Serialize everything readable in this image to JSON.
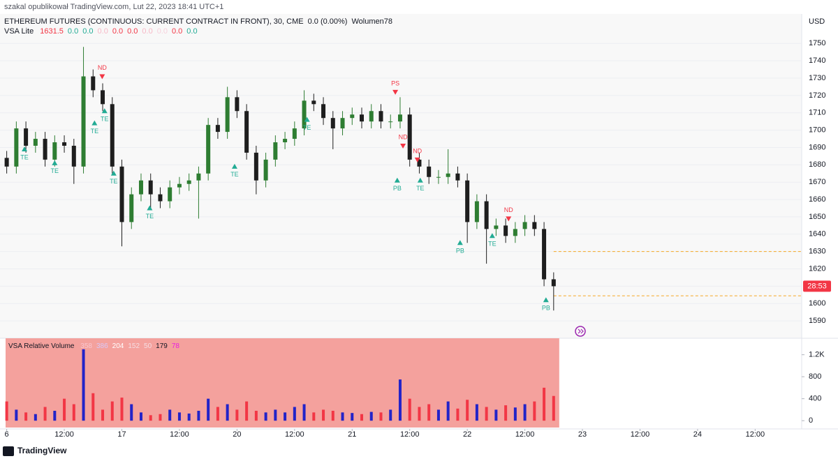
{
  "header": {
    "byline": "szakal opublikował TradingView.com, Lut 22, 2023 18:41 UTC+1",
    "symbol": "ETHEREUM FUTURES (CONTINUOUS: CURRENT CONTRACT IN FRONT), 30, CME",
    "change": "0.0 (0.00%)",
    "volume": "Wolumen78",
    "currency": "USD",
    "countdown": "28:53",
    "logo": "TradingView"
  },
  "legend": {
    "main_name": "VSA Lite",
    "main_values": [
      {
        "text": "1631.5",
        "color": "#f23645"
      },
      {
        "text": "0.0",
        "color": "#22ab94"
      },
      {
        "text": "0.0",
        "color": "#22ab94"
      },
      {
        "text": "0.0",
        "color": "#f7b8c6"
      },
      {
        "text": "0.0",
        "color": "#f23645"
      },
      {
        "text": "0.0",
        "color": "#f23645"
      },
      {
        "text": "0.0",
        "color": "#f7b8c6"
      },
      {
        "text": "0.0",
        "color": "#f7d0dc"
      },
      {
        "text": "0.0",
        "color": "#f23645"
      },
      {
        "text": "0.0",
        "color": "#22ab94"
      }
    ],
    "volume_name": "VSA Relative Volume",
    "volume_values": [
      {
        "text": "358",
        "color": "#f9c6cf"
      },
      {
        "text": "386",
        "color": "#d8c8f8"
      },
      {
        "text": "204",
        "color": "#ffffff"
      },
      {
        "text": "152",
        "color": "#f5dde3"
      },
      {
        "text": "50",
        "color": "#f5dde3"
      },
      {
        "text": "179",
        "color": "#131722"
      },
      {
        "text": "78",
        "color": "#e91ee0"
      }
    ]
  },
  "chart_data": [
    {
      "type": "candlestick",
      "x": [
        0,
        2,
        4,
        6,
        8,
        10,
        12,
        14,
        16,
        18,
        20,
        22,
        24,
        26,
        28,
        30,
        32,
        34,
        36,
        38,
        40,
        42,
        44,
        46,
        48,
        50,
        52,
        54,
        56,
        58,
        60,
        62,
        64,
        66,
        68,
        70,
        72,
        74,
        76,
        78,
        80,
        82,
        84,
        86,
        88,
        90,
        92,
        94,
        96,
        98,
        100,
        102,
        104,
        106,
        108,
        110,
        112,
        114
      ],
      "open": [
        1684,
        1679,
        1701,
        1691,
        1695,
        1683,
        1693,
        1691,
        1679,
        1731,
        1723,
        1715,
        1679,
        1647,
        1663,
        1671,
        1663,
        1659,
        1667,
        1669,
        1671,
        1675,
        1703,
        1699,
        1719,
        1711,
        1687,
        1671,
        1683,
        1693,
        1695,
        1701,
        1717,
        1715,
        1707,
        1701,
        1707,
        1709,
        1705,
        1711,
        1705,
        1705,
        1709,
        1683,
        1679,
        1673,
        1673,
        1675,
        1671,
        1647,
        1659,
        1643,
        1645,
        1639,
        1643,
        1647,
        1643,
        1614
      ],
      "high": [
        1688,
        1705,
        1705,
        1699,
        1699,
        1697,
        1697,
        1695,
        1748,
        1735,
        1727,
        1719,
        1683,
        1667,
        1675,
        1675,
        1667,
        1671,
        1673,
        1675,
        1679,
        1707,
        1707,
        1725,
        1723,
        1715,
        1691,
        1687,
        1697,
        1699,
        1705,
        1723,
        1721,
        1719,
        1711,
        1711,
        1713,
        1713,
        1715,
        1715,
        1709,
        1719,
        1713,
        1687,
        1683,
        1677,
        1689,
        1679,
        1675,
        1663,
        1663,
        1649,
        1649,
        1647,
        1651,
        1651,
        1647,
        1618
      ],
      "low": [
        1675,
        1675,
        1687,
        1687,
        1679,
        1679,
        1687,
        1669,
        1675,
        1719,
        1711,
        1675,
        1633,
        1643,
        1659,
        1655,
        1655,
        1655,
        1663,
        1665,
        1649,
        1671,
        1695,
        1695,
        1707,
        1683,
        1663,
        1667,
        1679,
        1689,
        1691,
        1697,
        1711,
        1703,
        1689,
        1697,
        1703,
        1701,
        1701,
        1701,
        1701,
        1701,
        1679,
        1675,
        1669,
        1669,
        1669,
        1667,
        1635,
        1643,
        1623,
        1639,
        1635,
        1635,
        1639,
        1639,
        1610,
        1596
      ],
      "close": [
        1679,
        1701,
        1691,
        1695,
        1683,
        1693,
        1691,
        1679,
        1731,
        1723,
        1715,
        1679,
        1647,
        1663,
        1671,
        1663,
        1659,
        1667,
        1669,
        1671,
        1675,
        1703,
        1699,
        1719,
        1711,
        1687,
        1671,
        1683,
        1693,
        1695,
        1701,
        1717,
        1715,
        1707,
        1701,
        1707,
        1709,
        1705,
        1711,
        1705,
        1705,
        1709,
        1683,
        1679,
        1673,
        1673,
        1675,
        1671,
        1647,
        1659,
        1643,
        1645,
        1639,
        1643,
        1647,
        1643,
        1614,
        1610
      ],
      "colors": {
        "up": "#2e7d32",
        "down": "#1e1e1e"
      },
      "xlim": [
        -1.4,
        165.7
      ],
      "xticks": [
        {
          "value": 0,
          "label": "6"
        },
        {
          "value": 12,
          "label": "12:00"
        },
        {
          "value": 24,
          "label": "17"
        },
        {
          "value": 36,
          "label": "12:00"
        },
        {
          "value": 48,
          "label": "20"
        },
        {
          "value": 60,
          "label": "12:00"
        },
        {
          "value": 72,
          "label": "21"
        },
        {
          "value": 84,
          "label": "12:00"
        },
        {
          "value": 96,
          "label": "22"
        },
        {
          "value": 108,
          "label": "12:00"
        },
        {
          "value": 120,
          "label": "23"
        },
        {
          "value": 132,
          "label": "12:00"
        },
        {
          "value": 144,
          "label": "24"
        },
        {
          "value": 156,
          "label": "12:00"
        }
      ],
      "ylim": [
        1580,
        1767
      ],
      "yticks": [
        1590,
        1600,
        1610,
        1620,
        1630,
        1640,
        1650,
        1660,
        1670,
        1680,
        1690,
        1700,
        1710,
        1720,
        1730,
        1740,
        1750
      ],
      "levels": [
        1630,
        1604.5
      ],
      "level_color": "#f5a623",
      "signals": [
        {
          "label": "TE",
          "x": 3.7,
          "y": 1689,
          "dir": "up"
        },
        {
          "label": "TE",
          "x": 10,
          "y": 1681,
          "dir": "up"
        },
        {
          "label": "TE",
          "x": 18.3,
          "y": 1704,
          "dir": "up"
        },
        {
          "label": "ND",
          "x": 19.9,
          "y": 1731,
          "dir": "down"
        },
        {
          "label": "TE",
          "x": 20.4,
          "y": 1711,
          "dir": "up"
        },
        {
          "label": "TE",
          "x": 22.3,
          "y": 1675,
          "dir": "up"
        },
        {
          "label": "TE",
          "x": 29.8,
          "y": 1655,
          "dir": "up"
        },
        {
          "label": "TE",
          "x": 47.5,
          "y": 1679,
          "dir": "up"
        },
        {
          "label": "TE",
          "x": 62.6,
          "y": 1706,
          "dir": "up"
        },
        {
          "label": "PS",
          "x": 81,
          "y": 1722,
          "dir": "down"
        },
        {
          "label": "ND",
          "x": 82.6,
          "y": 1691,
          "dir": "down"
        },
        {
          "label": "PB",
          "x": 81.4,
          "y": 1671,
          "dir": "up"
        },
        {
          "label": "ND",
          "x": 85.6,
          "y": 1683,
          "dir": "down"
        },
        {
          "label": "TE",
          "x": 86.2,
          "y": 1671,
          "dir": "up"
        },
        {
          "label": "PB",
          "x": 94.5,
          "y": 1635,
          "dir": "up"
        },
        {
          "label": "TE",
          "x": 101.2,
          "y": 1639,
          "dir": "up"
        },
        {
          "label": "ND",
          "x": 104.6,
          "y": 1649,
          "dir": "down"
        },
        {
          "label": "PB",
          "x": 112.4,
          "y": 1602,
          "dir": "up"
        }
      ],
      "signal_colors": {
        "up": "#22ab94",
        "down": "#f23645"
      }
    },
    {
      "type": "volume",
      "values": [
        350,
        200,
        150,
        120,
        250,
        180,
        400,
        300,
        1300,
        500,
        200,
        350,
        420,
        300,
        150,
        100,
        120,
        200,
        150,
        130,
        180,
        400,
        250,
        300,
        200,
        350,
        180,
        150,
        200,
        150,
        250,
        300,
        150,
        200,
        180,
        150,
        140,
        120,
        160,
        150,
        200,
        750,
        400,
        250,
        300,
        200,
        350,
        220,
        380,
        300,
        250,
        200,
        280,
        240,
        300,
        350,
        600,
        450
      ],
      "colors": {
        "up": "#2323c8",
        "down": "#f23645"
      },
      "background": "#f4a19d",
      "ylim": [
        -150,
        1500
      ],
      "yticks": [
        0,
        400,
        800,
        {
          "value": 1200,
          "label": "1.2K"
        }
      ]
    }
  ]
}
